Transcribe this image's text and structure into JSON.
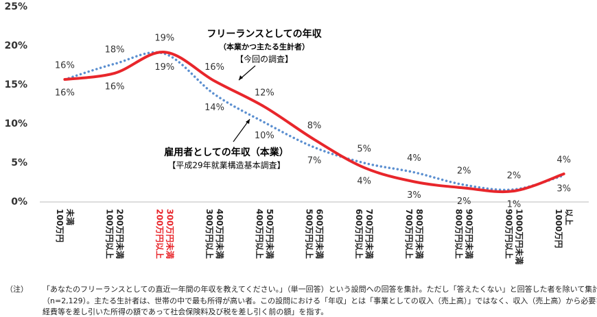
{
  "chart_data": {
    "type": "line",
    "categories": [
      [
        "100万円",
        "未満"
      ],
      [
        "100万円以上",
        "200万円未満"
      ],
      [
        "200万円以上",
        "300万円未満"
      ],
      [
        "300万円以上",
        "400万円未満"
      ],
      [
        "400万円以上",
        "500万円未満"
      ],
      [
        "500万円以上",
        "600万円未満"
      ],
      [
        "600万円以上",
        "700万円未満"
      ],
      [
        "700万円以上",
        "800万円未満"
      ],
      [
        "800万円以上",
        "900万円未満"
      ],
      [
        "900万円以上",
        "1000万円未満"
      ],
      [
        "1000万円",
        "以上"
      ]
    ],
    "highlight": {
      "category": 2,
      "color": "#e8262b"
    },
    "series": [
      {
        "name": "フリーランスとしての年収",
        "color": "#e8262b",
        "style": "solid",
        "values": [
          15.7,
          16.5,
          19.2,
          15.5,
          12.2,
          8.0,
          4.4,
          2.6,
          1.8,
          1.4,
          3.6
        ],
        "value_labels": [
          "16%",
          "16%",
          "19%",
          "16%",
          "12%",
          "8%",
          "4%",
          "3%",
          "2%",
          "1%",
          "4%"
        ]
      },
      {
        "name": "雇用者としての年収（本業）",
        "color": "#5b8fd0",
        "style": "dotted",
        "values": [
          15.7,
          17.7,
          19.0,
          13.8,
          10.2,
          7.0,
          5.0,
          3.8,
          2.2,
          1.6,
          3.4
        ],
        "value_labels": [
          "16%",
          "18%",
          "19%",
          "14%",
          "10%",
          "7%",
          "5%",
          "4%",
          "2%",
          "2%",
          "3%"
        ]
      }
    ],
    "ylim": [
      0,
      25
    ],
    "yticks": [
      {
        "value": 0,
        "label": "0%"
      },
      {
        "value": 5,
        "label": "5%"
      },
      {
        "value": 10,
        "label": "10%"
      },
      {
        "value": 15,
        "label": "15%"
      },
      {
        "value": 20,
        "label": "20%"
      },
      {
        "value": 25,
        "label": "25%"
      }
    ],
    "grid": false,
    "annotations": [
      "フリーランスとしての年収",
      "（本業かつ主たる生計者）",
      "【今回の調査】",
      "雇用者としての年収（本業）",
      "【平成29年就業構造基本調査】"
    ],
    "footnote": [
      "（注）",
      "「あなたのフリーランスとしての直近一年間の年収を教えてください。」（単一回答）という設問への回答を集計。ただし「答えたくない」と回答した者を除いて集計",
      "（n=2,129）。主たる生計者は、世帯の中で最も所得が高い者。この設問における「年収」とは「事業としての収入（売上高）」ではなく、収入（売上高）から必要な",
      "経費等を差し引いた所得の額であって社会保険料及び税を差し引く前の額」を指す。"
    ]
  }
}
